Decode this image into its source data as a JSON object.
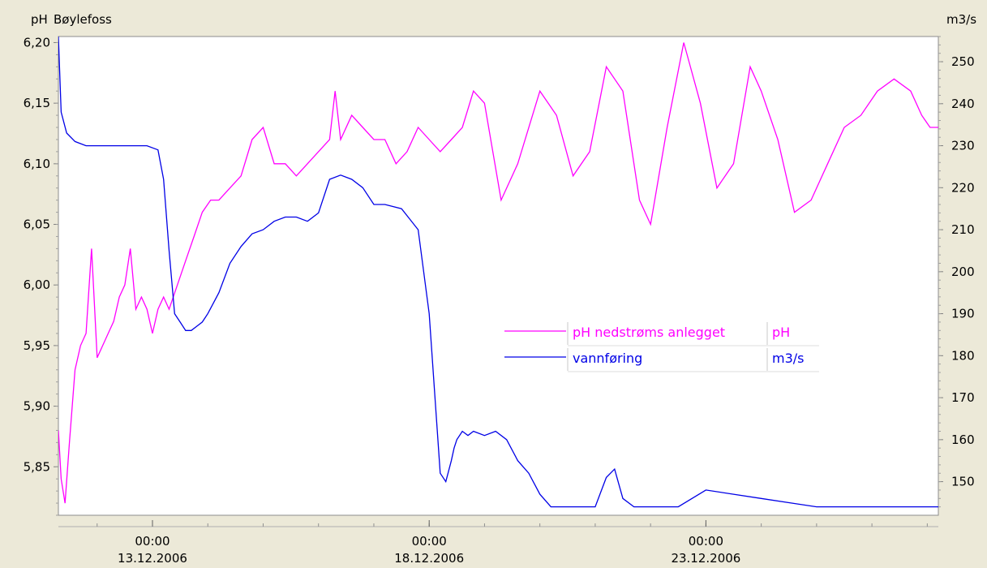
{
  "header": {
    "left_unit": "pH",
    "station": "Bøylefoss",
    "right_unit": "m3/s"
  },
  "colors": {
    "ph": "#ff00ff",
    "flow": "#0000e6",
    "background": "#ece9d8",
    "plot": "#ffffff"
  },
  "chart_data": {
    "type": "line",
    "title": "Bøylefoss",
    "x_ticks": [
      {
        "time": "00:00",
        "date": "13.12.2006"
      },
      {
        "time": "00:00",
        "date": "18.12.2006"
      },
      {
        "time": "00:00",
        "date": "23.12.2006"
      }
    ],
    "x_range_days": [
      11.3,
      27.2
    ],
    "y_left": {
      "unit": "pH",
      "range": [
        5.81,
        6.205
      ],
      "ticks": [
        "6,20",
        "6,15",
        "6,10",
        "6,05",
        "6,00",
        "5,95",
        "5,90",
        "5,85"
      ],
      "tick_values": [
        6.2,
        6.15,
        6.1,
        6.05,
        6.0,
        5.95,
        5.9,
        5.85
      ]
    },
    "y_right": {
      "unit": "m3/s",
      "range": [
        142.0,
        256.0
      ],
      "ticks": [
        "250",
        "240",
        "230",
        "220",
        "210",
        "200",
        "190",
        "180",
        "170",
        "160",
        "150"
      ],
      "tick_values": [
        250,
        240,
        230,
        220,
        210,
        200,
        190,
        180,
        170,
        160,
        150
      ]
    },
    "legend": {
      "placement": "center-right"
    },
    "series": [
      {
        "name": "pH nedstrøms anlegget",
        "unit": "pH",
        "axis": "left",
        "x": [
          11.3,
          11.35,
          11.42,
          11.5,
          11.6,
          11.7,
          11.8,
          11.9,
          12.0,
          12.1,
          12.2,
          12.3,
          12.4,
          12.5,
          12.6,
          12.7,
          12.8,
          12.9,
          13.0,
          13.1,
          13.2,
          13.3,
          13.45,
          13.6,
          13.75,
          13.9,
          14.05,
          14.2,
          14.4,
          14.6,
          14.8,
          15.0,
          15.2,
          15.4,
          15.6,
          15.8,
          16.0,
          16.2,
          16.3,
          16.4,
          16.6,
          16.8,
          17.0,
          17.2,
          17.4,
          17.6,
          17.8,
          18.0,
          18.2,
          18.4,
          18.6,
          18.8,
          19.0,
          19.3,
          19.6,
          20.0,
          20.3,
          20.6,
          20.9,
          21.2,
          21.5,
          21.8,
          22.0,
          22.3,
          22.6,
          22.9,
          23.2,
          23.5,
          23.8,
          24.0,
          24.3,
          24.6,
          24.9,
          25.2,
          25.5,
          25.8,
          26.1,
          26.4,
          26.7,
          26.9,
          27.05,
          27.2
        ],
        "values": [
          5.88,
          5.84,
          5.82,
          5.87,
          5.93,
          5.95,
          5.96,
          6.03,
          5.94,
          5.95,
          5.96,
          5.97,
          5.99,
          6.0,
          6.03,
          5.98,
          5.99,
          5.98,
          5.96,
          5.98,
          5.99,
          5.98,
          6.0,
          6.02,
          6.04,
          6.06,
          6.07,
          6.07,
          6.08,
          6.09,
          6.12,
          6.13,
          6.1,
          6.1,
          6.09,
          6.1,
          6.11,
          6.12,
          6.16,
          6.12,
          6.14,
          6.13,
          6.12,
          6.12,
          6.1,
          6.11,
          6.13,
          6.12,
          6.11,
          6.12,
          6.13,
          6.16,
          6.15,
          6.07,
          6.1,
          6.16,
          6.14,
          6.09,
          6.11,
          6.18,
          6.16,
          6.07,
          6.05,
          6.13,
          6.2,
          6.15,
          6.08,
          6.1,
          6.18,
          6.16,
          6.12,
          6.06,
          6.07,
          6.1,
          6.13,
          6.14,
          6.16,
          6.17,
          6.16,
          6.14,
          6.13,
          6.13
        ]
      },
      {
        "name": "vannføring",
        "unit": "m3/s",
        "axis": "right",
        "x": [
          11.3,
          11.35,
          11.45,
          11.6,
          11.8,
          12.0,
          12.3,
          12.6,
          12.9,
          13.1,
          13.2,
          13.3,
          13.4,
          13.5,
          13.6,
          13.7,
          13.8,
          13.9,
          14.0,
          14.2,
          14.4,
          14.6,
          14.8,
          15.0,
          15.2,
          15.4,
          15.6,
          15.8,
          16.0,
          16.2,
          16.4,
          16.6,
          16.8,
          17.0,
          17.2,
          17.5,
          17.8,
          18.0,
          18.2,
          18.3,
          18.4,
          18.45,
          18.5,
          18.6,
          18.7,
          18.8,
          19.0,
          19.2,
          19.4,
          19.6,
          19.8,
          20.0,
          20.2,
          20.4,
          20.6,
          20.8,
          21.0,
          21.2,
          21.35,
          21.5,
          21.7,
          22.0,
          22.5,
          23.0,
          23.5,
          24.0,
          24.5,
          25.0,
          25.5,
          26.0,
          26.5,
          27.0,
          27.2
        ],
        "values": [
          256,
          238,
          233,
          231,
          230,
          230,
          230,
          230,
          230,
          229,
          222,
          205,
          190,
          188,
          186,
          186,
          187,
          188,
          190,
          195,
          202,
          206,
          209,
          210,
          212,
          213,
          213,
          212,
          214,
          222,
          223,
          222,
          220,
          216,
          216,
          215,
          210,
          190,
          152,
          150,
          155,
          158,
          160,
          162,
          161,
          162,
          161,
          162,
          160,
          155,
          152,
          147,
          144,
          144,
          144,
          144,
          144,
          151,
          153,
          146,
          144,
          144,
          144,
          148,
          147,
          146,
          145,
          144,
          144,
          144,
          144,
          144,
          144
        ]
      }
    ]
  }
}
